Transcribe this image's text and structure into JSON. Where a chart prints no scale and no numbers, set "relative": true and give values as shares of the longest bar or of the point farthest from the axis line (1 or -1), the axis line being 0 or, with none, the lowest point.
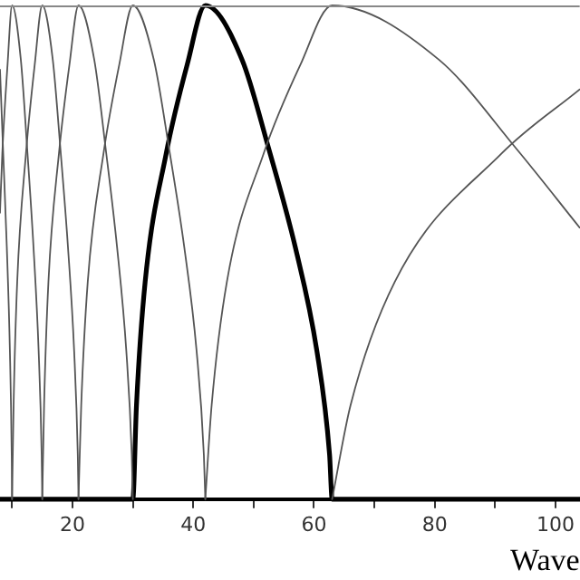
{
  "chart_data": {
    "type": "line",
    "relative": true,
    "xlabel": "Wave",
    "xlim": [
      8,
      104
    ],
    "xticks": [
      {
        "value": 10,
        "label": null
      },
      20,
      {
        "value": 30,
        "label": null
      },
      40,
      {
        "value": 50,
        "label": null
      },
      60,
      {
        "value": 70,
        "label": null
      },
      80,
      {
        "value": 90,
        "label": null
      },
      100
    ],
    "grid": false,
    "legend": false,
    "marker": "none",
    "line_style": "solid",
    "series": [
      {
        "color": "#555555",
        "x": [
          8,
          8.5,
          9.13,
          9.64,
          9.94,
          10
        ],
        "values": [
          0.87,
          0.71,
          0.51,
          0.3,
          0.09,
          0
        ]
      },
      {
        "color": "#555555",
        "x": [
          8,
          8.38,
          9.25,
          10,
          11.45,
          12.5,
          13.55,
          14.4,
          14.9,
          15
        ],
        "values": [
          0.58,
          0.7,
          0.88,
          1,
          0.89,
          0.71,
          0.51,
          0.3,
          0.09,
          0
        ]
      },
      {
        "color": "#555555",
        "x": [
          10,
          10.25,
          10.85,
          12.3,
          13.75,
          15,
          16.74,
          18,
          19.26,
          20.28,
          20.88,
          21
        ],
        "values": [
          0,
          0.19,
          0.44,
          0.7,
          0.88,
          1,
          0.89,
          0.71,
          0.51,
          0.3,
          0.09,
          0
        ]
      },
      {
        "color": "#555555",
        "x": [
          15,
          15.3,
          16.02,
          17.76,
          19.5,
          21,
          23.61,
          25.5,
          27.39,
          28.92,
          29.82,
          30
        ],
        "values": [
          0,
          0.19,
          0.44,
          0.7,
          0.88,
          1,
          0.89,
          0.71,
          0.51,
          0.3,
          0.09,
          0
        ]
      },
      {
        "color": "#555555",
        "x": [
          21,
          21.45,
          22.53,
          25.14,
          27.75,
          30,
          33.48,
          36,
          38.52,
          40.56,
          41.76,
          42
        ],
        "values": [
          0,
          0.19,
          0.44,
          0.7,
          0.88,
          1,
          0.89,
          0.71,
          0.51,
          0.3,
          0.09,
          0
        ]
      },
      {
        "color": "#555555",
        "x": [
          42,
          43.05,
          45.57,
          51.66,
          57.75,
          63,
          80.69,
          93.5,
          104
        ],
        "values": [
          0,
          0.19,
          0.44,
          0.7,
          0.88,
          1,
          0.89,
          0.71,
          0.55
        ]
      },
      {
        "color": "#555555",
        "x": [
          63,
          66.05,
          73.37,
          91.06,
          104
        ],
        "values": [
          0,
          0.19,
          0.44,
          0.7,
          0.83
        ]
      },
      {
        "color": "#000000",
        "x": [
          8,
          30,
          30.6,
          32.04,
          35.52,
          39,
          42,
          48.09,
          52.5,
          56.91,
          60.48,
          62.58,
          63,
          104
        ],
        "values": [
          0,
          0,
          0.19,
          0.44,
          0.7,
          0.88,
          1,
          0.89,
          0.71,
          0.51,
          0.3,
          0.09,
          0,
          0
        ]
      }
    ]
  }
}
